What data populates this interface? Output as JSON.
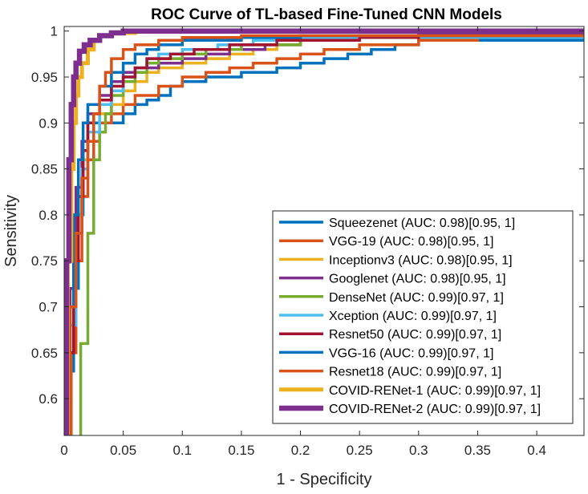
{
  "chart_data": {
    "type": "line",
    "title": "ROC Curve of TL-based Fine-Tuned CNN Models",
    "xlabel": "1 - Specificity",
    "ylabel": "Sensitivity",
    "xlim": [
      0,
      0.44
    ],
    "ylim": [
      0.56,
      1.005
    ],
    "xticks": [
      0,
      0.05,
      0.1,
      0.15,
      0.2,
      0.25,
      0.3,
      0.35,
      0.4
    ],
    "xtick_labels": [
      "0",
      "0.05",
      "0.1",
      "0.15",
      "0.2",
      "0.25",
      "0.3",
      "0.35",
      "0.4"
    ],
    "yticks": [
      0.6,
      0.65,
      0.7,
      0.75,
      0.8,
      0.85,
      0.9,
      0.95,
      1
    ],
    "ytick_labels": [
      "0.6",
      "0.65",
      "0.7",
      "0.75",
      "0.8",
      "0.85",
      "0.9",
      "0.95",
      "1"
    ],
    "grid": false,
    "legend_position": "bottom-right",
    "series": [
      {
        "name": "Squeezenet (AUC: 0.98)[0.95, 1]",
        "color": "#0072BD",
        "width": 3.5,
        "points": [
          [
            0,
            0.55
          ],
          [
            0.005,
            0.63
          ],
          [
            0.008,
            0.72
          ],
          [
            0.012,
            0.8
          ],
          [
            0.016,
            0.86
          ],
          [
            0.02,
            0.89
          ],
          [
            0.025,
            0.9
          ],
          [
            0.04,
            0.9
          ],
          [
            0.05,
            0.91
          ],
          [
            0.06,
            0.92
          ],
          [
            0.07,
            0.925
          ],
          [
            0.08,
            0.93
          ],
          [
            0.09,
            0.94
          ],
          [
            0.1,
            0.945
          ],
          [
            0.12,
            0.95
          ],
          [
            0.15,
            0.955
          ],
          [
            0.18,
            0.96
          ],
          [
            0.2,
            0.965
          ],
          [
            0.22,
            0.97
          ],
          [
            0.24,
            0.975
          ],
          [
            0.26,
            0.98
          ],
          [
            0.28,
            0.985
          ],
          [
            0.3,
            0.99
          ],
          [
            0.44,
            0.99
          ]
        ]
      },
      {
        "name": "VGG-19 (AUC: 0.98)[0.95, 1]",
        "color": "#D95319",
        "width": 3.5,
        "points": [
          [
            0,
            0.55
          ],
          [
            0.006,
            0.65
          ],
          [
            0.01,
            0.75
          ],
          [
            0.015,
            0.82
          ],
          [
            0.02,
            0.86
          ],
          [
            0.025,
            0.88
          ],
          [
            0.03,
            0.9
          ],
          [
            0.04,
            0.91
          ],
          [
            0.05,
            0.92
          ],
          [
            0.06,
            0.93
          ],
          [
            0.08,
            0.94
          ],
          [
            0.1,
            0.95
          ],
          [
            0.12,
            0.955
          ],
          [
            0.14,
            0.96
          ],
          [
            0.16,
            0.965
          ],
          [
            0.18,
            0.97
          ],
          [
            0.2,
            0.975
          ],
          [
            0.22,
            0.98
          ],
          [
            0.25,
            0.985
          ],
          [
            0.3,
            0.99
          ],
          [
            0.35,
            0.995
          ],
          [
            0.44,
            0.995
          ]
        ]
      },
      {
        "name": "Inceptionv3 (AUC: 0.98)[0.95, 1]",
        "color": "#EDB120",
        "width": 3.5,
        "points": [
          [
            0,
            0.55
          ],
          [
            0.005,
            0.7
          ],
          [
            0.01,
            0.8
          ],
          [
            0.015,
            0.86
          ],
          [
            0.02,
            0.89
          ],
          [
            0.03,
            0.91
          ],
          [
            0.04,
            0.92
          ],
          [
            0.05,
            0.935
          ],
          [
            0.06,
            0.945
          ],
          [
            0.07,
            0.955
          ],
          [
            0.08,
            0.96
          ],
          [
            0.1,
            0.965
          ],
          [
            0.12,
            0.97
          ],
          [
            0.14,
            0.975
          ],
          [
            0.16,
            0.98
          ],
          [
            0.18,
            0.985
          ],
          [
            0.2,
            0.99
          ],
          [
            0.25,
            0.993
          ],
          [
            0.3,
            0.995
          ],
          [
            0.44,
            0.995
          ]
        ]
      },
      {
        "name": "Googlenet (AUC: 0.98)[0.95, 1]",
        "color": "#7E2F8E",
        "width": 3.5,
        "points": [
          [
            0,
            0.55
          ],
          [
            0.005,
            0.72
          ],
          [
            0.01,
            0.83
          ],
          [
            0.015,
            0.88
          ],
          [
            0.02,
            0.91
          ],
          [
            0.03,
            0.93
          ],
          [
            0.04,
            0.945
          ],
          [
            0.05,
            0.955
          ],
          [
            0.06,
            0.96
          ],
          [
            0.08,
            0.965
          ],
          [
            0.1,
            0.97
          ],
          [
            0.12,
            0.975
          ],
          [
            0.14,
            0.98
          ],
          [
            0.17,
            0.985
          ],
          [
            0.2,
            0.99
          ],
          [
            0.25,
            0.995
          ],
          [
            0.3,
            0.997
          ],
          [
            0.44,
            0.997
          ]
        ]
      },
      {
        "name": "DenseNet (AUC: 0.99)[0.97, 1]",
        "color": "#77AC30",
        "width": 3.5,
        "points": [
          [
            0,
            0.55
          ],
          [
            0.012,
            0.55
          ],
          [
            0.014,
            0.66
          ],
          [
            0.02,
            0.78
          ],
          [
            0.025,
            0.86
          ],
          [
            0.03,
            0.89
          ],
          [
            0.035,
            0.91
          ],
          [
            0.04,
            0.93
          ],
          [
            0.05,
            0.945
          ],
          [
            0.06,
            0.955
          ],
          [
            0.07,
            0.965
          ],
          [
            0.08,
            0.97
          ],
          [
            0.1,
            0.975
          ],
          [
            0.12,
            0.98
          ],
          [
            0.15,
            0.985
          ],
          [
            0.2,
            0.99
          ],
          [
            0.25,
            0.993
          ],
          [
            0.44,
            0.993
          ]
        ]
      },
      {
        "name": "Xception (AUC: 0.99)[0.97, 1]",
        "color": "#4DBEEE",
        "width": 3.5,
        "points": [
          [
            0,
            0.55
          ],
          [
            0.005,
            0.68
          ],
          [
            0.01,
            0.78
          ],
          [
            0.015,
            0.85
          ],
          [
            0.02,
            0.89
          ],
          [
            0.03,
            0.92
          ],
          [
            0.04,
            0.935
          ],
          [
            0.05,
            0.95
          ],
          [
            0.06,
            0.96
          ],
          [
            0.07,
            0.97
          ],
          [
            0.08,
            0.975
          ],
          [
            0.1,
            0.98
          ],
          [
            0.13,
            0.985
          ],
          [
            0.16,
            0.99
          ],
          [
            0.2,
            0.993
          ],
          [
            0.44,
            0.993
          ]
        ]
      },
      {
        "name": "Resnet50 (AUC: 0.99)[0.97, 1]",
        "color": "#A2142F",
        "width": 3.5,
        "points": [
          [
            0,
            0.55
          ],
          [
            0.004,
            0.65
          ],
          [
            0.008,
            0.75
          ],
          [
            0.012,
            0.82
          ],
          [
            0.016,
            0.87
          ],
          [
            0.02,
            0.9
          ],
          [
            0.025,
            0.91
          ],
          [
            0.03,
            0.925
          ],
          [
            0.04,
            0.94
          ],
          [
            0.05,
            0.95
          ],
          [
            0.06,
            0.96
          ],
          [
            0.07,
            0.97
          ],
          [
            0.09,
            0.975
          ],
          [
            0.11,
            0.98
          ],
          [
            0.14,
            0.985
          ],
          [
            0.18,
            0.99
          ],
          [
            0.25,
            0.993
          ],
          [
            0.3,
            0.995
          ],
          [
            0.44,
            0.995
          ]
        ]
      },
      {
        "name": "VGG-16 (AUC: 0.99)[0.97, 1]",
        "color": "#0072BD",
        "width": 3.5,
        "points": [
          [
            0,
            0.55
          ],
          [
            0.004,
            0.7
          ],
          [
            0.008,
            0.8
          ],
          [
            0.012,
            0.86
          ],
          [
            0.016,
            0.9
          ],
          [
            0.02,
            0.92
          ],
          [
            0.03,
            0.94
          ],
          [
            0.04,
            0.955
          ],
          [
            0.05,
            0.965
          ],
          [
            0.06,
            0.975
          ],
          [
            0.07,
            0.98
          ],
          [
            0.08,
            0.985
          ],
          [
            0.1,
            0.99
          ],
          [
            0.15,
            0.993
          ],
          [
            0.2,
            0.995
          ],
          [
            0.44,
            0.995
          ]
        ]
      },
      {
        "name": "Resnet18 (AUC: 0.99)[0.97, 1]",
        "color": "#D95319",
        "width": 3.5,
        "points": [
          [
            0,
            0.55
          ],
          [
            0.005,
            0.7
          ],
          [
            0.01,
            0.78
          ],
          [
            0.015,
            0.84
          ],
          [
            0.02,
            0.88
          ],
          [
            0.025,
            0.91
          ],
          [
            0.03,
            0.94
          ],
          [
            0.035,
            0.955
          ],
          [
            0.04,
            0.97
          ],
          [
            0.05,
            0.98
          ],
          [
            0.06,
            0.985
          ],
          [
            0.08,
            0.99
          ],
          [
            0.1,
            0.993
          ],
          [
            0.15,
            0.995
          ],
          [
            0.44,
            0.995
          ]
        ]
      },
      {
        "name": "COVID-RENet-1 (AUC: 0.99)[0.97, 1]",
        "color": "#EDB120",
        "width": 5,
        "points": [
          [
            0,
            0.55
          ],
          [
            0.003,
            0.75
          ],
          [
            0.006,
            0.85
          ],
          [
            0.008,
            0.9
          ],
          [
            0.01,
            0.93
          ],
          [
            0.012,
            0.95
          ],
          [
            0.015,
            0.965
          ],
          [
            0.02,
            0.98
          ],
          [
            0.025,
            0.99
          ],
          [
            0.03,
            0.995
          ],
          [
            0.04,
            0.998
          ],
          [
            0.06,
            1
          ],
          [
            0.44,
            1
          ]
        ]
      },
      {
        "name": "COVID-RENet-2 (AUC: 0.99)[0.97, 1]",
        "color": "#7E2F8E",
        "width": 6.5,
        "points": [
          [
            0,
            0.55
          ],
          [
            0.002,
            0.75
          ],
          [
            0.004,
            0.86
          ],
          [
            0.006,
            0.92
          ],
          [
            0.008,
            0.95
          ],
          [
            0.01,
            0.965
          ],
          [
            0.013,
            0.978
          ],
          [
            0.017,
            0.985
          ],
          [
            0.022,
            0.99
          ],
          [
            0.03,
            0.995
          ],
          [
            0.04,
            0.998
          ],
          [
            0.05,
            1
          ],
          [
            0.44,
            1
          ]
        ]
      }
    ]
  }
}
